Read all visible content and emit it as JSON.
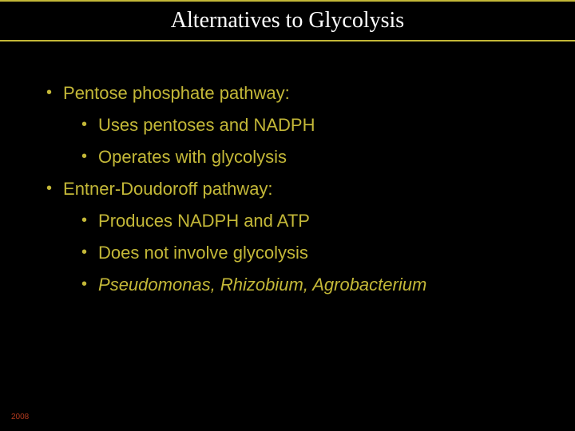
{
  "slide": {
    "title": "Alternatives to Glycolysis",
    "footer_year": "2008",
    "colors": {
      "background": "#000000",
      "accent_border": "#c4b838",
      "title_text": "#ffffff",
      "bullet_text": "#c4b838",
      "bullet_marker": "#c4b838",
      "footer_text": "#b33a1e"
    },
    "typography": {
      "title_font": "Times New Roman",
      "title_fontsize": 28,
      "body_font": "Arial",
      "body_fontsize": 22,
      "footer_fontsize": 10
    },
    "bullets": [
      {
        "level": 1,
        "text": "Pentose phosphate pathway:",
        "italic": false
      },
      {
        "level": 2,
        "text": "Uses pentoses and NADPH",
        "italic": false
      },
      {
        "level": 2,
        "text": "Operates with glycolysis",
        "italic": false
      },
      {
        "level": 1,
        "text": "Entner-Doudoroff pathway:",
        "italic": false
      },
      {
        "level": 2,
        "text": "Produces NADPH and ATP",
        "italic": false
      },
      {
        "level": 2,
        "text": "Does not involve glycolysis",
        "italic": false
      },
      {
        "level": 2,
        "text": "Pseudomonas, Rhizobium, Agrobacterium",
        "italic": true
      }
    ]
  }
}
